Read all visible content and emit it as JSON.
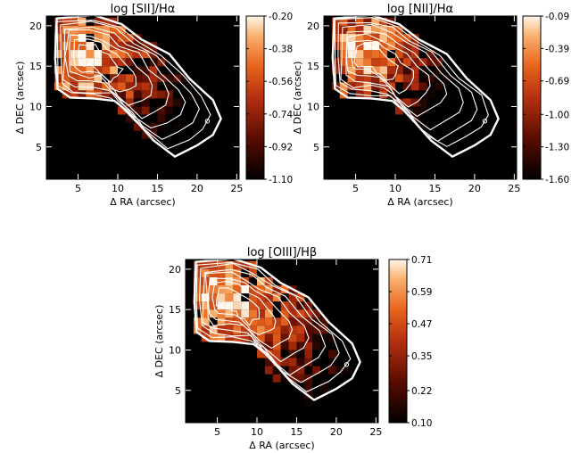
{
  "chart_data": [
    {
      "type": "heatmap",
      "title": "log [SII]/Hα",
      "xlabel": "Δ RA (arcsec)",
      "ylabel": "Δ DEC (arcsec)",
      "xlim": [
        1,
        25.3
      ],
      "ylim": [
        1,
        21.2
      ],
      "xticks": [
        5,
        10,
        15,
        20,
        25
      ],
      "yticks": [
        5,
        10,
        15,
        20
      ],
      "colorbar": {
        "range": [
          -1.1,
          -0.2
        ],
        "tick_values": [
          -1.1,
          -0.92,
          -0.74,
          -0.56,
          -0.38,
          -0.2
        ],
        "tick_labels": [
          "-1.10",
          "-0.92",
          "-0.74",
          "-0.56",
          "-0.38",
          "-0.20"
        ]
      },
      "contours": "white",
      "cell_size_arcsec": 1.0
    },
    {
      "type": "heatmap",
      "title": "log [NII]/Hα",
      "xlabel": "Δ RA (arcsec)",
      "ylabel": "Δ DEC (arcsec)",
      "xlim": [
        1,
        25.3
      ],
      "ylim": [
        1,
        21.2
      ],
      "xticks": [
        5,
        10,
        15,
        20,
        25
      ],
      "yticks": [
        5,
        10,
        15,
        20
      ],
      "colorbar": {
        "range": [
          -1.6,
          -0.09
        ],
        "tick_values": [
          -1.6,
          -1.3,
          -1.0,
          -0.69,
          -0.39,
          -0.09
        ],
        "tick_labels": [
          "-1.60",
          "-1.30",
          "-1.00",
          "-0.69",
          "-0.39",
          "-0.09"
        ]
      },
      "contours": "white",
      "cell_size_arcsec": 1.0
    },
    {
      "type": "heatmap",
      "title": "log [OIII]/Hβ",
      "xlabel": "Δ RA (arcsec)",
      "ylabel": "Δ DEC (arcsec)",
      "xlim": [
        1,
        25.3
      ],
      "ylim": [
        1,
        21.2
      ],
      "xticks": [
        5,
        10,
        15,
        20,
        25
      ],
      "yticks": [
        5,
        10,
        15,
        20
      ],
      "colorbar": {
        "range": [
          0.1,
          0.71
        ],
        "tick_values": [
          0.1,
          0.22,
          0.35,
          0.47,
          0.59,
          0.71
        ],
        "tick_labels": [
          "0.10",
          "0.22",
          "0.35",
          "0.47",
          "0.59",
          "0.71"
        ]
      },
      "contours": "white",
      "cell_size_arcsec": 1.0
    }
  ]
}
